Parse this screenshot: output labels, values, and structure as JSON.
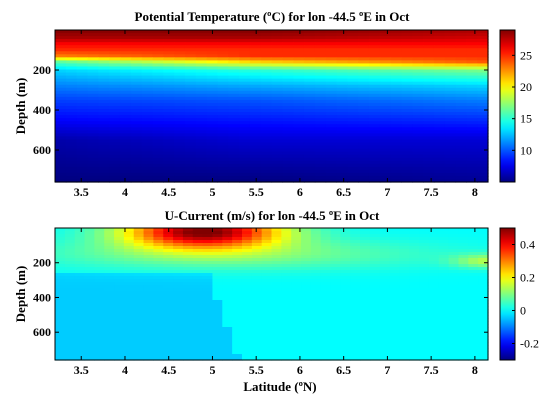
{
  "chart_data": [
    {
      "type": "heatmap",
      "title": "Potential Temperature (ºC) for lon -44.5 ºE in Oct",
      "xlabel": "",
      "ylabel": "Depth (m)",
      "xlim": [
        3.2,
        8.15
      ],
      "ylim": [
        760,
        0
      ],
      "xticks": [
        "3.5",
        "4",
        "4.5",
        "5",
        "5.5",
        "6",
        "6.5",
        "7",
        "7.5",
        "8"
      ],
      "xtick_values": [
        3.5,
        4,
        4.5,
        5,
        5.5,
        6,
        6.5,
        7,
        7.5,
        8
      ],
      "yticks": [
        "200",
        "400",
        "600"
      ],
      "ytick_values": [
        200,
        400,
        600
      ],
      "colorbar": {
        "min": 5,
        "max": 29,
        "ticks": [
          "25",
          "20",
          "15",
          "10"
        ],
        "tick_values": [
          25,
          20,
          15,
          10
        ]
      },
      "x": [
        3.2,
        5.5,
        8.15
      ],
      "depth": [
        0,
        40,
        70,
        100,
        130,
        160,
        200,
        280,
        350,
        450,
        550,
        760
      ],
      "values": [
        [
          29,
          29,
          28
        ],
        [
          28,
          28,
          27
        ],
        [
          26,
          26,
          26
        ],
        [
          25,
          25,
          25
        ],
        [
          23,
          25,
          25
        ],
        [
          16,
          21,
          24
        ],
        [
          13,
          15,
          17
        ],
        [
          11,
          12,
          13
        ],
        [
          9.5,
          10,
          11
        ],
        [
          8,
          8.5,
          9
        ],
        [
          6,
          7,
          7
        ],
        [
          5,
          5,
          5.5
        ]
      ]
    },
    {
      "type": "heatmap",
      "title": "U-Current (m/s) for lon -44.5 ºE in Oct",
      "xlabel": "Latitude (ºN)",
      "ylabel": "Depth (m)",
      "xlim": [
        3.2,
        8.15
      ],
      "ylim": [
        760,
        0
      ],
      "xticks": [
        "3.5",
        "4",
        "4.5",
        "5",
        "5.5",
        "6",
        "6.5",
        "7",
        "7.5",
        "8"
      ],
      "xtick_values": [
        3.5,
        4,
        4.5,
        5,
        5.5,
        6,
        6.5,
        7,
        7.5,
        8
      ],
      "yticks": [
        "200",
        "400",
        "600"
      ],
      "ytick_values": [
        200,
        400,
        600
      ],
      "colorbar": {
        "min": -0.3,
        "max": 0.5,
        "ticks": [
          "0.4",
          "0.2",
          "0",
          "-0.2"
        ],
        "tick_values": [
          0.4,
          0.2,
          0,
          -0.2
        ]
      },
      "jet_core": {
        "lat": 4.9,
        "depth": 20,
        "speed": 0.5
      },
      "background_value": 0,
      "deep_weak_westward_value": -0.04,
      "deep_weak_westward_region": {
        "lat_max": 5.3,
        "depth_min": 260
      },
      "eddy_near_8N": {
        "lat": 8.15,
        "depth": 190,
        "value": 0.13
      }
    }
  ]
}
